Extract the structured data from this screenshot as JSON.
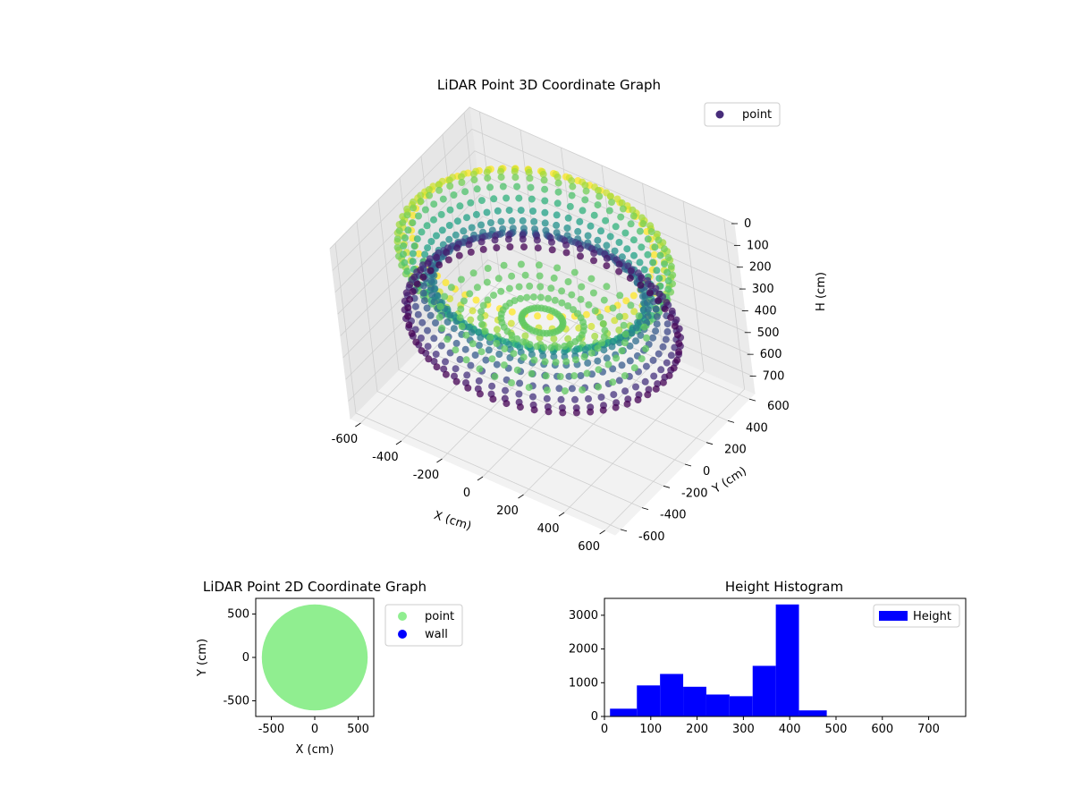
{
  "chart_data": [
    {
      "type": "scatter",
      "projection": "3d",
      "title": "LiDAR Point 3D Coordinate Graph",
      "xlabel": "X (cm)",
      "ylabel": "Y (cm)",
      "zlabel": "H (cm)",
      "xlim": [
        -650,
        650
      ],
      "ylim": [
        -650,
        650
      ],
      "zlim": [
        780,
        0
      ],
      "x_ticks": [
        -600,
        -400,
        -200,
        0,
        200,
        400,
        600
      ],
      "y_ticks": [
        -600,
        -400,
        -200,
        0,
        200,
        400,
        600
      ],
      "z_ticks": [
        0,
        100,
        200,
        300,
        400,
        500,
        600,
        700
      ],
      "legend": [
        "point"
      ],
      "legend_position": "upper-right",
      "colormap": "viridis",
      "description": "Ring of points at radius ~600 cm with heights ~30-430 cm; floor points converge toward center",
      "series": [
        {
          "name": "point",
          "ring_radius": 600,
          "height_range": [
            30,
            430
          ]
        }
      ]
    },
    {
      "type": "scatter",
      "title": "LiDAR Point 2D Coordinate Graph",
      "xlabel": "X (cm)",
      "ylabel": "Y (cm)",
      "xlim": [
        -680,
        680
      ],
      "ylim": [
        -680,
        680
      ],
      "x_ticks": [
        -500,
        0,
        500
      ],
      "y_ticks": [
        500,
        0,
        -500
      ],
      "legend_position": "outside-right",
      "series": [
        {
          "name": "point",
          "color": "#90ee90",
          "shape": "filled-disk",
          "radius": 610
        },
        {
          "name": "wall",
          "color": "#0000ff",
          "values": []
        }
      ]
    },
    {
      "type": "bar",
      "subtype": "histogram",
      "title": "Height Histogram",
      "xlim": [
        0,
        780
      ],
      "ylim": [
        0,
        3500
      ],
      "x_ticks": [
        0,
        100,
        200,
        300,
        400,
        500,
        600,
        700
      ],
      "y_ticks": [
        0,
        1000,
        2000,
        3000
      ],
      "legend": [
        "Height"
      ],
      "legend_position": "upper-right",
      "color": "#0000ff",
      "bin_edges": [
        12,
        70,
        120,
        170,
        220,
        270,
        320,
        370,
        420,
        480
      ],
      "counts": [
        230,
        920,
        1260,
        880,
        650,
        600,
        1500,
        3320,
        180
      ]
    }
  ],
  "colors": {
    "point_2d": "#90ee90",
    "wall": "#0000ff",
    "histogram": "#0000ff",
    "pane": "#f2f2f2",
    "grid": "#d0d0d0"
  }
}
